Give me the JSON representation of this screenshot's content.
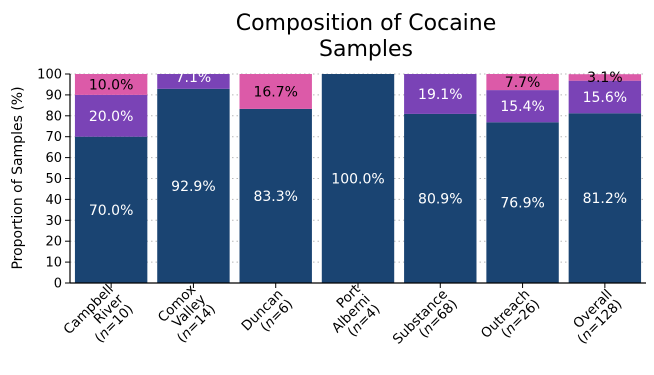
{
  "chart_data": {
    "type": "bar",
    "stacked": true,
    "title_lines": [
      "Composition of Cocaine",
      "Samples"
    ],
    "xlabel": "",
    "ylabel": "Proportion of Samples (%)",
    "ylim": [
      0,
      100
    ],
    "yticks": [
      0,
      10,
      20,
      30,
      40,
      50,
      60,
      70,
      80,
      90,
      100
    ],
    "grid": "horizontal dotted",
    "categories": [
      {
        "lines": [
          "Campbell",
          "River",
          "(n=10)"
        ]
      },
      {
        "lines": [
          "Comox",
          "Valley",
          "(n=14)"
        ]
      },
      {
        "lines": [
          "Duncan",
          "(n=6)"
        ]
      },
      {
        "lines": [
          "Port",
          "Alberni",
          "(n=4)"
        ]
      },
      {
        "lines": [
          "Substance",
          "(n=68)"
        ]
      },
      {
        "lines": [
          "Outreach",
          "(n=26)"
        ]
      },
      {
        "lines": [
          "Overall",
          "(n=128)"
        ]
      }
    ],
    "series": [
      {
        "color": "#1a4472",
        "label_color": "#ffffff",
        "values": [
          70.0,
          92.9,
          83.3,
          100.0,
          80.9,
          76.9,
          81.2
        ],
        "labels": [
          "70.0%",
          "92.9%",
          "83.3%",
          "100.0%",
          "80.9%",
          "76.9%",
          "81.2%"
        ]
      },
      {
        "color": "#7a43b6",
        "label_color": "#ffffff",
        "values": [
          20.0,
          7.1,
          0,
          0,
          19.1,
          15.4,
          15.6
        ],
        "labels": [
          "20.0%",
          "7.1%",
          "",
          "",
          "19.1%",
          "15.4%",
          "15.6%"
        ]
      },
      {
        "color": "#dc5aa8",
        "label_color": "#000000",
        "values": [
          10.0,
          0,
          16.7,
          0,
          0,
          7.7,
          3.1
        ],
        "labels": [
          "10.0%",
          "",
          "16.7%",
          "",
          "",
          "7.7%",
          "3.1%"
        ]
      }
    ]
  }
}
